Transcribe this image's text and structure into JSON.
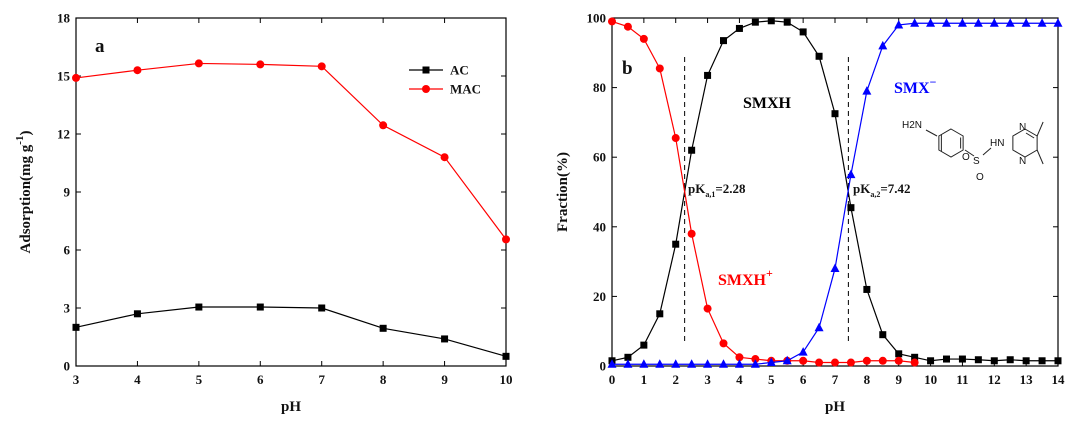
{
  "chart_data": [
    {
      "type": "line",
      "panel": "a",
      "xlabel": "pH",
      "ylabel": "Adsorption(mg g",
      "ylabel_sup": "-1",
      "ylabel_close": ")",
      "xlim": [
        3,
        10
      ],
      "ylim": [
        0,
        18
      ],
      "xticks": [
        3,
        4,
        5,
        6,
        7,
        8,
        9,
        10
      ],
      "yticks": [
        0,
        3,
        6,
        9,
        12,
        15,
        18
      ],
      "grid": false,
      "legend": "top-right",
      "series": [
        {
          "name": "AC",
          "color": "#000000",
          "marker": "square",
          "x": [
            3,
            4,
            5,
            6,
            7,
            8,
            9,
            10
          ],
          "y": [
            2.0,
            2.7,
            3.05,
            3.05,
            3.0,
            1.95,
            1.4,
            0.5
          ]
        },
        {
          "name": "MAC",
          "color": "#ff0000",
          "marker": "circle",
          "x": [
            3,
            4,
            5,
            6,
            7,
            8,
            9,
            10
          ],
          "y": [
            14.9,
            15.3,
            15.65,
            15.6,
            15.5,
            12.45,
            10.8,
            6.55
          ]
        }
      ]
    },
    {
      "type": "line",
      "panel": "b",
      "xlabel": "pH",
      "ylabel": "Fraction(%)",
      "xlim": [
        0,
        14
      ],
      "ylim": [
        0,
        100
      ],
      "xticks": [
        0,
        1,
        2,
        3,
        4,
        5,
        6,
        7,
        8,
        9,
        10,
        11,
        12,
        13,
        14
      ],
      "yticks": [
        0,
        20,
        40,
        60,
        80,
        100
      ],
      "grid": false,
      "vlines": [
        2.28,
        7.42
      ],
      "series": [
        {
          "name": "SMXH",
          "color": "#000000",
          "marker": "square",
          "x": [
            0,
            0.5,
            1,
            1.5,
            2,
            2.5,
            3,
            3.5,
            4,
            4.5,
            5,
            5.5,
            6,
            6.5,
            7,
            7.5,
            8,
            8.5,
            9,
            9.5,
            10,
            10.5,
            11,
            11.5,
            12,
            12.5,
            13,
            13.5,
            14
          ],
          "y": [
            1.5,
            2.5,
            6,
            15,
            35,
            62,
            83.5,
            93.5,
            97,
            98.8,
            99.2,
            98.8,
            96,
            89,
            72.5,
            45.5,
            22,
            9,
            3.5,
            2.5,
            1.5,
            2,
            2,
            1.8,
            1.5,
            1.8,
            1.5,
            1.5,
            1.5
          ]
        },
        {
          "name": "SMXH+",
          "color": "#ff0000",
          "marker": "circle",
          "x": [
            0,
            0.5,
            1,
            1.5,
            2,
            2.5,
            3,
            3.5,
            4,
            4.5,
            5,
            5.5,
            6,
            6.5,
            7,
            7.5,
            8,
            8.5,
            9,
            9.5
          ],
          "y": [
            99,
            97.5,
            94,
            85.5,
            65.5,
            38,
            16.5,
            6.5,
            2.5,
            2,
            1.5,
            1.5,
            1.5,
            1,
            1,
            1,
            1.5,
            1.5,
            1.5,
            1
          ]
        },
        {
          "name": "SMX-",
          "color": "#0000ff",
          "marker": "triangle",
          "x": [
            0,
            0.5,
            1,
            1.5,
            2,
            2.5,
            3,
            3.5,
            4,
            4.5,
            5,
            5.5,
            6,
            6.5,
            7,
            7.5,
            8,
            8.5,
            9,
            9.5,
            10,
            10.5,
            11,
            11.5,
            12,
            12.5,
            13,
            13.5,
            14
          ],
          "y": [
            0.5,
            0.5,
            0.5,
            0.5,
            0.5,
            0.5,
            0.5,
            0.5,
            0.5,
            0.5,
            1,
            1.5,
            4,
            11,
            28,
            55,
            79,
            92,
            98,
            98.5,
            98.5,
            98.5,
            98.5,
            98.5,
            98.5,
            98.5,
            98.5,
            98.5,
            98.5
          ]
        }
      ],
      "annotations": {
        "smxh": "SMXH",
        "smxh_plus": "SMXH",
        "smxh_plus_sup": "+",
        "smx_minus": "SMX",
        "smx_minus_sup": "−",
        "pka1_main": "pK",
        "pka1_sub": "a,1",
        "pka1_value": "=2.28",
        "pka2_main": "pK",
        "pka2_sub": "a,2",
        "pka2_value": "=7.42"
      },
      "structure_labels": {
        "amine": "H2N",
        "s": "S",
        "o_top": "O",
        "o_bottom": "O",
        "nh": "HN",
        "n_top": "N",
        "n_bottom": "N"
      }
    }
  ]
}
